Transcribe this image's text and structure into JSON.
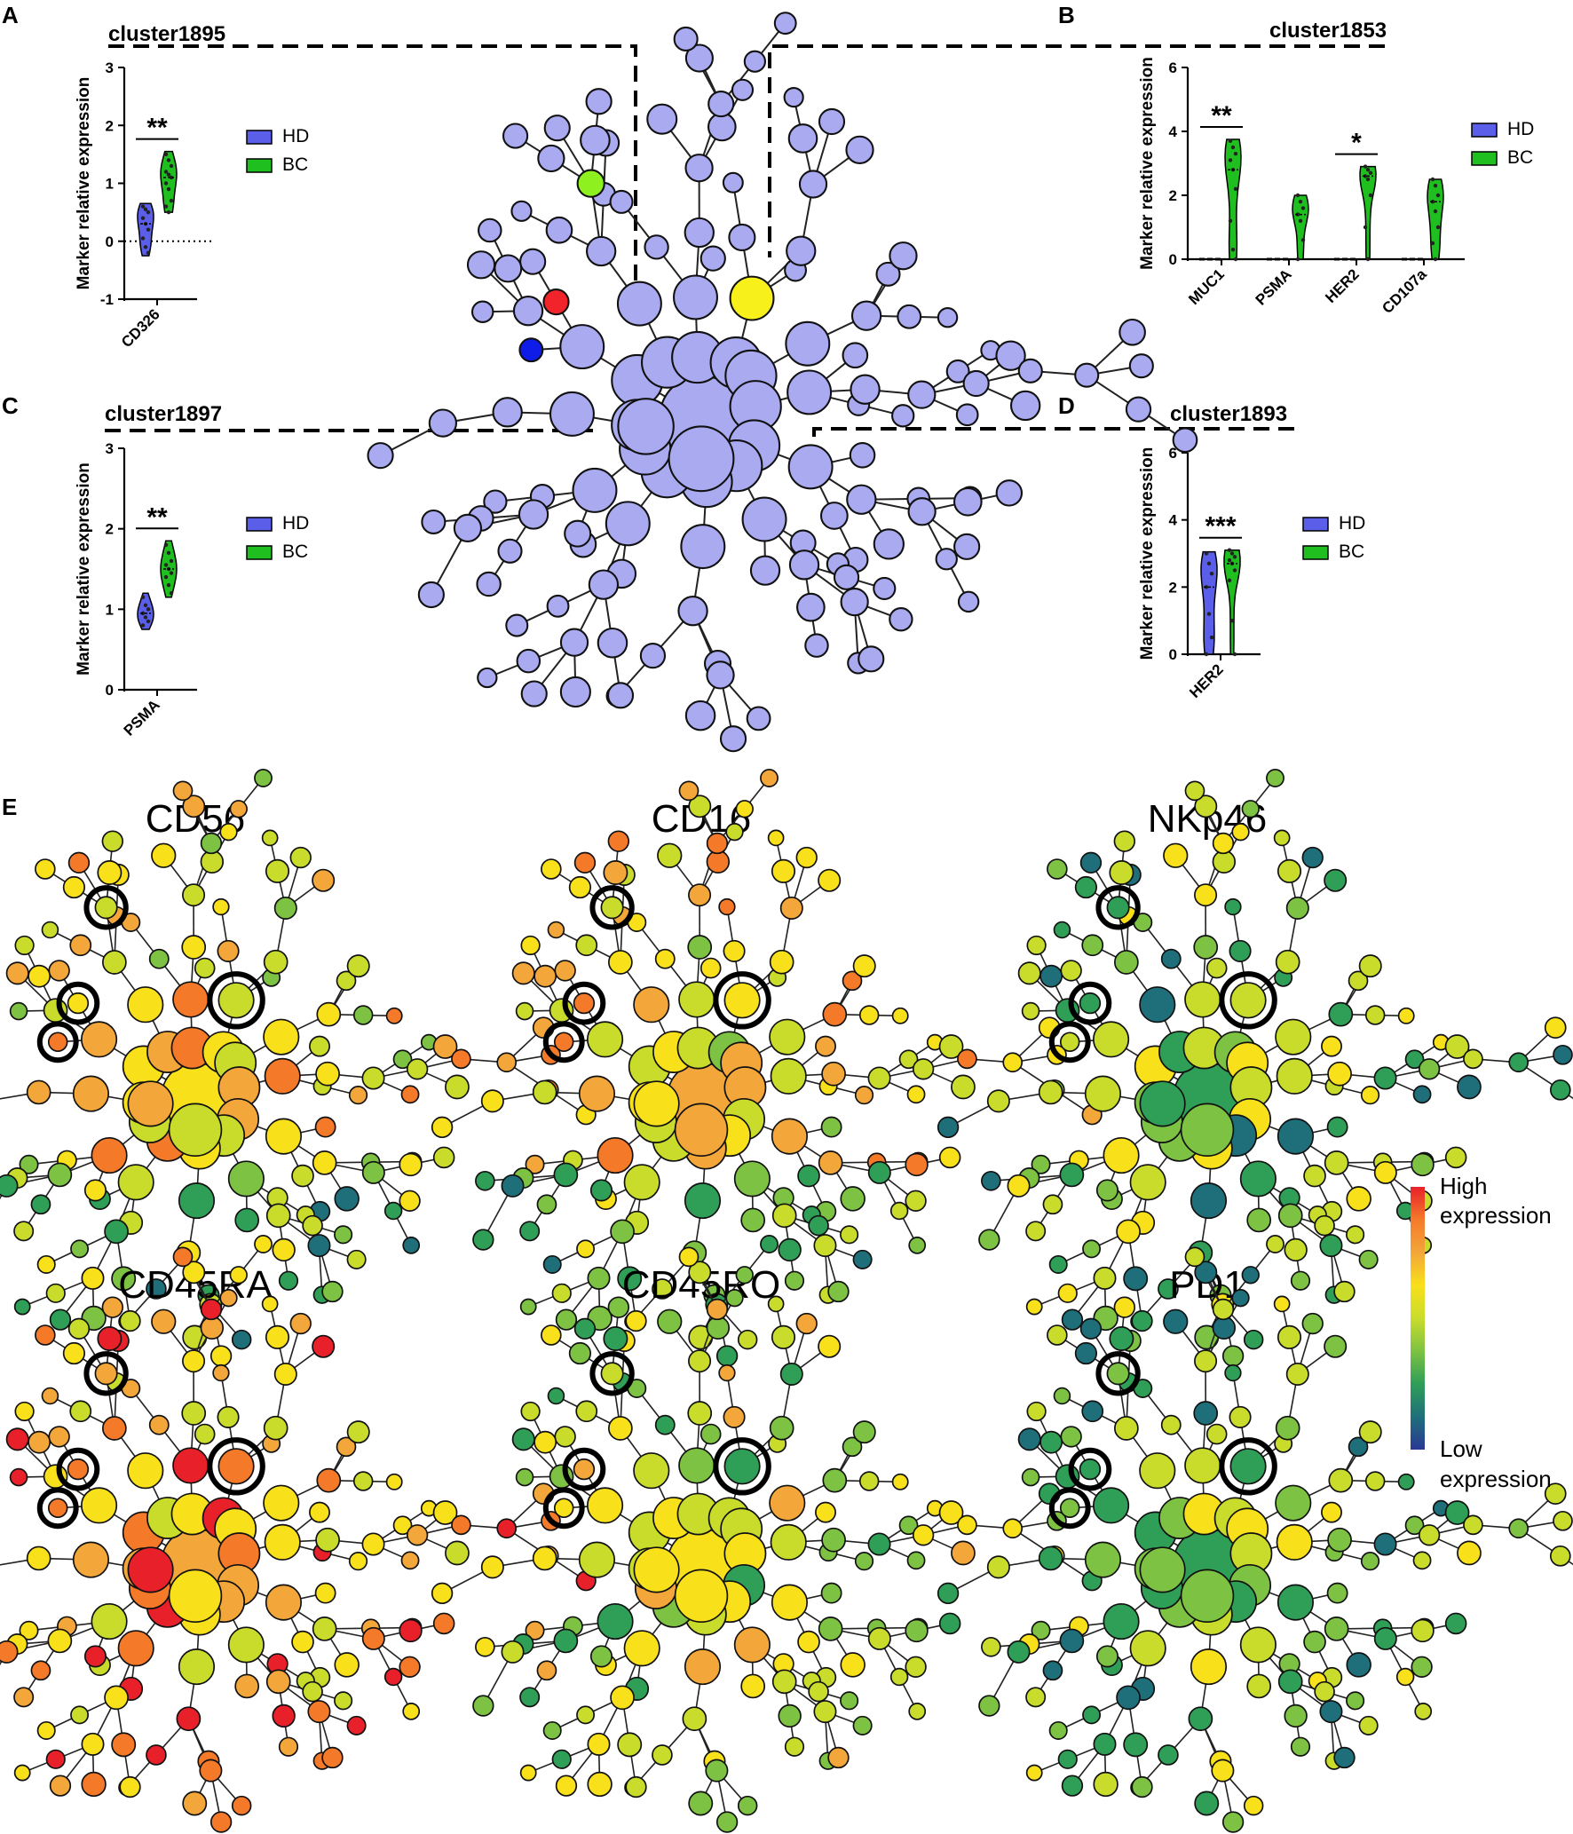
{
  "panels": {
    "A": "A",
    "B": "B",
    "C": "C",
    "D": "D",
    "E": "E"
  },
  "chart_data": [
    {
      "type": "violin",
      "panel": "A",
      "title": "cluster1895",
      "ylabel": "Marker relative expression",
      "ylim": [
        -1,
        3
      ],
      "yticks": [
        -1,
        0,
        1,
        2,
        3
      ],
      "zero_line": "dotted",
      "categories": [
        "CD326"
      ],
      "groups": [
        "HD",
        "BC"
      ],
      "series": [
        {
          "name": "HD",
          "values": [
            [
              0.6,
              0.55,
              0.5,
              0.4,
              0.3,
              0.2,
              0.05,
              -0.1,
              -0.2
            ]
          ],
          "range": [
            [
              -0.25,
              0.65
            ]
          ]
        },
        {
          "name": "BC",
          "values": [
            [
              1.5,
              1.4,
              1.3,
              1.2,
              1.15,
              1.1,
              1.0,
              0.9,
              0.7,
              0.6,
              0.5
            ]
          ],
          "range": [
            [
              0.5,
              1.55
            ]
          ]
        }
      ],
      "significance": [
        {
          "category": "CD326",
          "label": "**"
        }
      ],
      "colors": {
        "HD": "#5a5ee8",
        "BC": "#1fbf1f"
      }
    },
    {
      "type": "violin",
      "panel": "B",
      "title": "cluster1853",
      "ylabel": "Marker relative expression",
      "ylim": [
        0,
        6
      ],
      "yticks": [
        0,
        2,
        4,
        6
      ],
      "categories": [
        "MUC1",
        "PSMA",
        "HER2",
        "CD107a"
      ],
      "groups": [
        "HD",
        "BC"
      ],
      "series": [
        {
          "name": "HD",
          "values": [
            [
              0,
              0,
              0
            ],
            [
              0,
              0,
              0
            ],
            [
              0,
              0,
              0
            ],
            [
              0,
              0,
              0
            ]
          ],
          "range": [
            [
              0,
              0.05
            ],
            [
              0,
              0.05
            ],
            [
              0,
              0.05
            ],
            [
              0,
              0.05
            ]
          ]
        },
        {
          "name": "BC",
          "values": [
            [
              3.7,
              3.5,
              3.3,
              3.1,
              2.8,
              2.2,
              1.2,
              0.3,
              0
            ],
            [
              2.0,
              1.8,
              1.6,
              1.4,
              1.2,
              0.6,
              0
            ],
            [
              2.9,
              2.8,
              2.7,
              2.6,
              2.5,
              2.0,
              1.0,
              0
            ],
            [
              2.5,
              2.3,
              2.0,
              1.8,
              1.5,
              1.0,
              0.5,
              0
            ]
          ],
          "range": [
            [
              0,
              3.75
            ],
            [
              0,
              2.0
            ],
            [
              0,
              2.9
            ],
            [
              0,
              2.5
            ]
          ]
        }
      ],
      "significance": [
        {
          "category": "MUC1",
          "label": "**"
        },
        {
          "category": "HER2",
          "label": "*"
        }
      ],
      "colors": {
        "HD": "#5a5ee8",
        "BC": "#1fbf1f"
      }
    },
    {
      "type": "violin",
      "panel": "C",
      "title": "cluster1897",
      "ylabel": "Marker relative expression",
      "ylim": [
        0,
        3
      ],
      "yticks": [
        0,
        1,
        2,
        3
      ],
      "categories": [
        "PSMA"
      ],
      "groups": [
        "HD",
        "BC"
      ],
      "series": [
        {
          "name": "HD",
          "values": [
            [
              1.15,
              1.05,
              1.0,
              0.95,
              0.9,
              0.85,
              0.8
            ]
          ],
          "range": [
            [
              0.75,
              1.2
            ]
          ]
        },
        {
          "name": "BC",
          "values": [
            [
              1.8,
              1.7,
              1.6,
              1.55,
              1.5,
              1.45,
              1.4,
              1.3,
              1.2
            ]
          ],
          "range": [
            [
              1.15,
              1.85
            ]
          ]
        }
      ],
      "significance": [
        {
          "category": "PSMA",
          "label": "**"
        }
      ],
      "colors": {
        "HD": "#5a5ee8",
        "BC": "#1fbf1f"
      }
    },
    {
      "type": "violin",
      "panel": "D",
      "title": "cluster1893",
      "ylabel": "Marker relative expression",
      "ylim": [
        0,
        6
      ],
      "yticks": [
        0,
        2,
        4,
        6
      ],
      "categories": [
        "HER2"
      ],
      "groups": [
        "HD",
        "BC"
      ],
      "series": [
        {
          "name": "HD",
          "values": [
            [
              3.0,
              2.7,
              2.4,
              2.0,
              1.2,
              0.5,
              0
            ]
          ],
          "range": [
            [
              0,
              3.05
            ]
          ]
        },
        {
          "name": "BC",
          "values": [
            [
              3.1,
              3.0,
              2.9,
              2.8,
              2.7,
              2.5,
              2.2,
              1.0,
              0
            ]
          ],
          "range": [
            [
              0,
              3.1
            ]
          ]
        }
      ],
      "significance": [
        {
          "category": "HER2",
          "label": "***"
        }
      ],
      "colors": {
        "HD": "#5a5ee8",
        "BC": "#1fbf1f"
      }
    },
    {
      "type": "tree",
      "panel": "E",
      "markers": [
        "CD56",
        "CD16",
        "NKp46",
        "CD45RA",
        "CD45RO",
        "PD1"
      ],
      "colorbar": {
        "high_label": "High\nexpression",
        "low_label": "Low\nexpression",
        "colors": [
          "#e8202a",
          "#f47a2a",
          "#f3a63a",
          "#f8e01a",
          "#c9dc2c",
          "#7dc242",
          "#2f9e57",
          "#1f6f7a",
          "#293894"
        ]
      },
      "highlighted_clusters": 4
    }
  ],
  "tree_main": {
    "node_color": "#a9aaf0",
    "highlight": {
      "cluster1895": "#0f1be6",
      "cluster1853": "#8ef01e",
      "cluster1897": "#f0242a",
      "cluster1893": "#f8f01a"
    }
  },
  "labels": {
    "legend_hd": "HD",
    "legend_bc": "BC",
    "high1": "High",
    "high2": "expression",
    "low1": "Low",
    "low2": "expression"
  }
}
